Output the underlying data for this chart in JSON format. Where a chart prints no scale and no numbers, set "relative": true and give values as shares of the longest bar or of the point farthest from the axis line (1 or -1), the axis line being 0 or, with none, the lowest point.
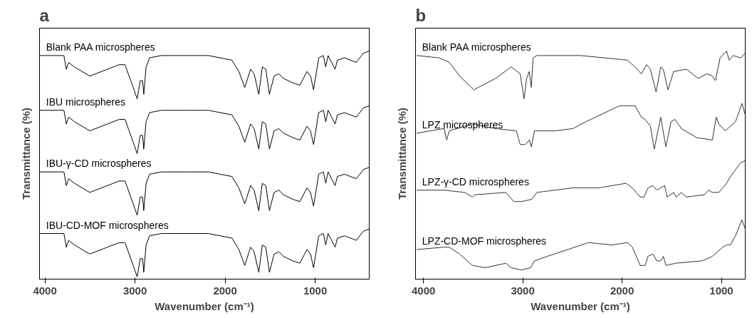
{
  "chart_data": [
    {
      "type": "line",
      "title": "a",
      "xlabel": "Wavenumber (cm⁻¹)",
      "ylabel": "Transmittance (%)",
      "xlim": [
        4060,
        400
      ],
      "xticks": [
        4000,
        3000,
        2000,
        1000
      ],
      "relative": true,
      "tick_labels": "x",
      "x": [
        4060,
        3789,
        3763,
        3737,
        3672,
        3502,
        3176,
        3111,
        3020,
        2976,
        2942,
        2916,
        2903,
        2877,
        2838,
        2707,
        2395,
        2186,
        1925,
        1847,
        1782,
        1717,
        1678,
        1626,
        1587,
        1548,
        1508,
        1456,
        1404,
        1352,
        1248,
        1170,
        1091,
        1052,
        1018,
        961,
        909,
        883,
        857,
        779,
        753,
        674,
        544,
        466,
        400
      ],
      "series": [
        {
          "name": "Blank PAA microspheres",
          "color": "#000000",
          "values": [
            0.98,
            0.98,
            0.92,
            0.95,
            0.93,
            0.89,
            0.94,
            0.94,
            0.84,
            0.79,
            0.87,
            0.87,
            0.81,
            0.93,
            0.97,
            0.98,
            0.98,
            0.98,
            0.96,
            0.91,
            0.84,
            0.92,
            0.9,
            0.81,
            0.93,
            0.92,
            0.81,
            0.89,
            0.9,
            0.88,
            0.86,
            0.85,
            0.91,
            0.89,
            0.83,
            0.97,
            0.98,
            0.93,
            0.98,
            0.92,
            0.96,
            0.97,
            0.95,
            0.99,
            1.0
          ]
        },
        {
          "name": "IBU microspheres",
          "color": "#000000",
          "values": [
            0.74,
            0.74,
            0.68,
            0.71,
            0.69,
            0.65,
            0.7,
            0.7,
            0.6,
            0.55,
            0.63,
            0.63,
            0.57,
            0.69,
            0.73,
            0.74,
            0.74,
            0.74,
            0.72,
            0.67,
            0.6,
            0.68,
            0.66,
            0.57,
            0.69,
            0.68,
            0.57,
            0.65,
            0.66,
            0.64,
            0.62,
            0.61,
            0.67,
            0.65,
            0.59,
            0.73,
            0.74,
            0.69,
            0.74,
            0.68,
            0.72,
            0.73,
            0.71,
            0.75,
            0.76
          ]
        },
        {
          "name": "IBU-γ-CD microspheres",
          "color": "#000000",
          "values": [
            0.47,
            0.47,
            0.41,
            0.44,
            0.42,
            0.38,
            0.43,
            0.43,
            0.33,
            0.28,
            0.36,
            0.36,
            0.3,
            0.42,
            0.46,
            0.47,
            0.47,
            0.47,
            0.45,
            0.4,
            0.33,
            0.41,
            0.39,
            0.3,
            0.42,
            0.41,
            0.3,
            0.38,
            0.39,
            0.37,
            0.35,
            0.34,
            0.4,
            0.38,
            0.32,
            0.46,
            0.47,
            0.42,
            0.47,
            0.41,
            0.45,
            0.46,
            0.44,
            0.48,
            0.49
          ]
        },
        {
          "name": "IBU-CD-MOF microspheres",
          "color": "#000000",
          "values": [
            0.2,
            0.2,
            0.14,
            0.17,
            0.15,
            0.11,
            0.16,
            0.16,
            0.06,
            0.01,
            0.09,
            0.09,
            0.03,
            0.15,
            0.19,
            0.2,
            0.2,
            0.2,
            0.18,
            0.13,
            0.06,
            0.14,
            0.12,
            0.03,
            0.15,
            0.14,
            0.03,
            0.11,
            0.12,
            0.1,
            0.08,
            0.07,
            0.13,
            0.11,
            0.05,
            0.19,
            0.2,
            0.15,
            0.2,
            0.14,
            0.18,
            0.19,
            0.17,
            0.21,
            0.22
          ]
        }
      ]
    },
    {
      "type": "line",
      "title": "b",
      "xlabel": "Wavenumber (cm⁻¹)",
      "ylabel": "Transmittance (%)",
      "xlim": [
        4080,
        760
      ],
      "xticks": [
        4000,
        3000,
        2000,
        1000
      ],
      "relative": true,
      "tick_labels": "x",
      "series": [
        {
          "name": "Blank PAA microspheres",
          "color": "#333333",
          "x": [
            4065,
            3844,
            3740,
            3636,
            3494,
            3273,
            3117,
            3026,
            2987,
            2961,
            2935,
            2914,
            2896,
            2857,
            2416,
            1948,
            1870,
            1806,
            1754,
            1715,
            1657,
            1611,
            1585,
            1538,
            1481,
            1351,
            1234,
            1143,
            1091,
            1060,
            1013,
            948,
            922,
            883,
            806,
            760
          ],
          "values": [
            0.98,
            0.97,
            0.95,
            0.89,
            0.83,
            0.88,
            0.93,
            0.9,
            0.79,
            0.88,
            0.91,
            0.84,
            0.97,
            0.98,
            0.98,
            0.96,
            0.93,
            0.9,
            0.94,
            0.92,
            0.82,
            0.93,
            0.92,
            0.83,
            0.91,
            0.92,
            0.88,
            0.9,
            0.89,
            0.87,
            0.97,
            1.0,
            0.96,
            0.98,
            0.97,
            0.99
          ]
        },
        {
          "name": "LPZ microspheres",
          "color": "#333333",
          "x": [
            4065,
            3792,
            3766,
            3740,
            3507,
            3273,
            3065,
            3026,
            2974,
            2935,
            2914,
            2883,
            2675,
            2494,
            2364,
            2026,
            1870,
            1806,
            1767,
            1715,
            1676,
            1611,
            1559,
            1507,
            1468,
            1403,
            1247,
            1091,
            1052,
            1026,
            962,
            858,
            793,
            760
          ],
          "values": [
            0.64,
            0.66,
            0.61,
            0.65,
            0.68,
            0.66,
            0.65,
            0.59,
            0.59,
            0.61,
            0.58,
            0.65,
            0.65,
            0.66,
            0.69,
            0.76,
            0.76,
            0.71,
            0.7,
            0.67,
            0.57,
            0.71,
            0.58,
            0.69,
            0.7,
            0.66,
            0.62,
            0.61,
            0.71,
            0.68,
            0.65,
            0.69,
            0.77,
            0.72
          ]
        },
        {
          "name": "LPZ-γ-CD microspheres",
          "color": "#333333",
          "x": [
            4065,
            3792,
            3584,
            3507,
            3481,
            3169,
            3091,
            3013,
            2909,
            2857,
            2494,
            2234,
            1961,
            1896,
            1818,
            1779,
            1740,
            1689,
            1650,
            1611,
            1572,
            1546,
            1481,
            1455,
            1403,
            1351,
            1169,
            1130,
            1091,
            1026,
            948,
            909,
            858,
            806,
            760
          ],
          "values": [
            0.39,
            0.39,
            0.38,
            0.36,
            0.37,
            0.38,
            0.34,
            0.34,
            0.35,
            0.38,
            0.4,
            0.4,
            0.42,
            0.4,
            0.36,
            0.36,
            0.4,
            0.41,
            0.39,
            0.4,
            0.41,
            0.36,
            0.38,
            0.36,
            0.38,
            0.36,
            0.37,
            0.39,
            0.38,
            0.38,
            0.42,
            0.45,
            0.48,
            0.51,
            0.52
          ]
        },
        {
          "name": "LPZ-CD-MOF microspheres",
          "color": "#333333",
          "x": [
            4065,
            3792,
            3740,
            3636,
            3507,
            3377,
            3169,
            3117,
            3013,
            2922,
            2883,
            2753,
            2545,
            2338,
            2104,
            1948,
            1896,
            1818,
            1767,
            1740,
            1689,
            1650,
            1611,
            1585,
            1559,
            1455,
            1195,
            1091,
            987,
            948,
            909,
            858,
            793,
            760
          ],
          "values": [
            0.13,
            0.14,
            0.14,
            0.11,
            0.06,
            0.05,
            0.07,
            0.05,
            0.04,
            0.05,
            0.08,
            0.1,
            0.13,
            0.16,
            0.15,
            0.16,
            0.14,
            0.06,
            0.06,
            0.1,
            0.11,
            0.08,
            0.08,
            0.1,
            0.06,
            0.07,
            0.08,
            0.1,
            0.14,
            0.15,
            0.15,
            0.19,
            0.26,
            0.22
          ]
        }
      ]
    }
  ]
}
